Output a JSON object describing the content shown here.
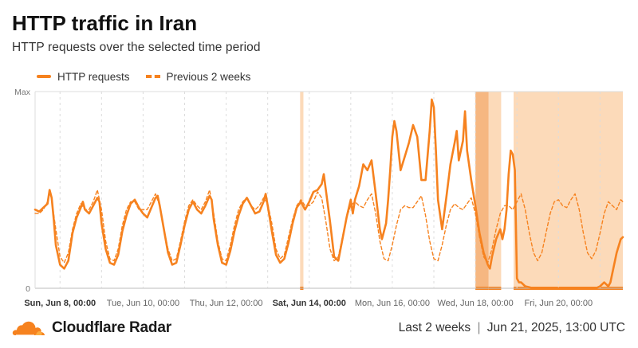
{
  "header": {
    "title": "HTTP traffic in Iran",
    "subtitle": "HTTP requests over the selected time period"
  },
  "legend": {
    "current": "HTTP requests",
    "previous": "Previous 2 weeks"
  },
  "footer": {
    "brand": "Cloudflare Radar",
    "range": "Last 2 weeks",
    "separator": "|",
    "timestamp": "Jun 21, 2025, 13:00 UTC"
  },
  "colors": {
    "accent": "#f6821f",
    "shade": "#fbd3ad",
    "grid": "#dcdcdc"
  },
  "chart_data": {
    "type": "line",
    "x_unit": "day index from Sun, Jun 8, 00:00 UTC",
    "ylabel_ticks": [
      "Max",
      "0"
    ],
    "ylim": [
      0,
      100
    ],
    "xlim": [
      -0.6,
      13.55
    ],
    "x_ticks": [
      {
        "x": 0,
        "label": "Sun, Jun 8, 00:00",
        "bold": true
      },
      {
        "x": 2,
        "label": "Tue, Jun 10, 00:00",
        "bold": false
      },
      {
        "x": 4,
        "label": "Thu, Jun 12, 00:00",
        "bold": false
      },
      {
        "x": 6,
        "label": "Sat, Jun 14, 00:00",
        "bold": true
      },
      {
        "x": 8,
        "label": "Mon, Jun 16, 00:00",
        "bold": false
      },
      {
        "x": 10,
        "label": "Wed, Jun 18, 00:00",
        "bold": false
      },
      {
        "x": 12,
        "label": "Fri, Jun 20, 00:00",
        "bold": false
      }
    ],
    "highlights": [
      {
        "x0": 5.78,
        "x1": 5.86,
        "strength": "light"
      },
      {
        "x0": 10.0,
        "x1": 10.32,
        "strength": "dark"
      },
      {
        "x0": 10.32,
        "x1": 10.62,
        "strength": "light"
      },
      {
        "x0": 10.92,
        "x1": 13.55,
        "strength": "light"
      }
    ],
    "series": [
      {
        "name": "HTTP requests",
        "style": "solid",
        "points": [
          [
            -0.6,
            40
          ],
          [
            -0.5,
            39
          ],
          [
            -0.4,
            41
          ],
          [
            -0.3,
            43
          ],
          [
            -0.25,
            50
          ],
          [
            -0.2,
            46
          ],
          [
            -0.15,
            35
          ],
          [
            -0.1,
            22
          ],
          [
            0.0,
            12
          ],
          [
            0.1,
            10
          ],
          [
            0.2,
            14
          ],
          [
            0.3,
            28
          ],
          [
            0.4,
            36
          ],
          [
            0.5,
            41
          ],
          [
            0.55,
            44
          ],
          [
            0.6,
            40
          ],
          [
            0.7,
            38
          ],
          [
            0.8,
            42
          ],
          [
            0.9,
            46
          ],
          [
            0.95,
            44
          ],
          [
            1.0,
            33
          ],
          [
            1.1,
            20
          ],
          [
            1.2,
            13
          ],
          [
            1.3,
            12
          ],
          [
            1.4,
            17
          ],
          [
            1.5,
            29
          ],
          [
            1.6,
            37
          ],
          [
            1.7,
            43
          ],
          [
            1.8,
            45
          ],
          [
            1.9,
            41
          ],
          [
            2.0,
            38
          ],
          [
            2.1,
            36
          ],
          [
            2.2,
            41
          ],
          [
            2.3,
            46
          ],
          [
            2.35,
            47
          ],
          [
            2.4,
            42
          ],
          [
            2.5,
            30
          ],
          [
            2.6,
            18
          ],
          [
            2.7,
            12
          ],
          [
            2.8,
            13
          ],
          [
            2.9,
            22
          ],
          [
            3.0,
            32
          ],
          [
            3.1,
            40
          ],
          [
            3.2,
            44
          ],
          [
            3.3,
            40
          ],
          [
            3.4,
            38
          ],
          [
            3.5,
            42
          ],
          [
            3.6,
            47
          ],
          [
            3.65,
            45
          ],
          [
            3.7,
            35
          ],
          [
            3.8,
            22
          ],
          [
            3.9,
            13
          ],
          [
            4.0,
            12
          ],
          [
            4.1,
            19
          ],
          [
            4.2,
            29
          ],
          [
            4.3,
            37
          ],
          [
            4.4,
            43
          ],
          [
            4.5,
            46
          ],
          [
            4.6,
            42
          ],
          [
            4.7,
            38
          ],
          [
            4.8,
            39
          ],
          [
            4.9,
            44
          ],
          [
            4.95,
            48
          ],
          [
            5.0,
            42
          ],
          [
            5.1,
            29
          ],
          [
            5.2,
            17
          ],
          [
            5.3,
            13
          ],
          [
            5.4,
            15
          ],
          [
            5.5,
            23
          ],
          [
            5.6,
            33
          ],
          [
            5.7,
            41
          ],
          [
            5.8,
            44
          ],
          [
            5.85,
            42
          ],
          [
            5.9,
            40
          ],
          [
            6.0,
            44
          ],
          [
            6.1,
            49
          ],
          [
            6.2,
            50
          ],
          [
            6.3,
            53
          ],
          [
            6.35,
            58
          ],
          [
            6.4,
            50
          ],
          [
            6.5,
            34
          ],
          [
            6.6,
            16
          ],
          [
            6.7,
            14
          ],
          [
            6.8,
            25
          ],
          [
            6.9,
            36
          ],
          [
            7.0,
            45
          ],
          [
            7.05,
            38
          ],
          [
            7.1,
            45
          ],
          [
            7.2,
            52
          ],
          [
            7.3,
            63
          ],
          [
            7.4,
            60
          ],
          [
            7.5,
            65
          ],
          [
            7.6,
            48
          ],
          [
            7.7,
            30
          ],
          [
            7.75,
            25
          ],
          [
            7.85,
            33
          ],
          [
            7.9,
            45
          ],
          [
            7.95,
            60
          ],
          [
            8.0,
            77
          ],
          [
            8.05,
            85
          ],
          [
            8.1,
            80
          ],
          [
            8.2,
            60
          ],
          [
            8.3,
            67
          ],
          [
            8.4,
            74
          ],
          [
            8.5,
            83
          ],
          [
            8.6,
            77
          ],
          [
            8.7,
            55
          ],
          [
            8.8,
            55
          ],
          [
            8.9,
            80
          ],
          [
            8.95,
            96
          ],
          [
            9.0,
            92
          ],
          [
            9.05,
            70
          ],
          [
            9.1,
            45
          ],
          [
            9.2,
            30
          ],
          [
            9.3,
            46
          ],
          [
            9.4,
            63
          ],
          [
            9.5,
            74
          ],
          [
            9.55,
            80
          ],
          [
            9.6,
            65
          ],
          [
            9.7,
            75
          ],
          [
            9.75,
            90
          ],
          [
            9.8,
            70
          ],
          [
            9.9,
            55
          ],
          [
            10.0,
            42
          ],
          [
            10.1,
            28
          ],
          [
            10.2,
            18
          ],
          [
            10.3,
            12
          ],
          [
            10.35,
            10
          ],
          [
            10.4,
            16
          ],
          [
            10.5,
            25
          ],
          [
            10.6,
            30
          ],
          [
            10.65,
            25
          ],
          [
            10.7,
            30
          ],
          [
            10.75,
            40
          ],
          [
            10.8,
            58
          ],
          [
            10.85,
            70
          ],
          [
            10.9,
            68
          ],
          [
            10.95,
            60
          ],
          [
            11.0,
            5
          ],
          [
            11.05,
            3
          ],
          [
            11.1,
            3
          ],
          [
            11.2,
            1
          ],
          [
            11.4,
            0
          ],
          [
            11.8,
            0
          ],
          [
            12.3,
            0
          ],
          [
            12.7,
            0
          ],
          [
            12.9,
            0
          ],
          [
            13.0,
            1
          ],
          [
            13.1,
            3
          ],
          [
            13.15,
            2
          ],
          [
            13.2,
            1
          ],
          [
            13.25,
            3
          ],
          [
            13.3,
            8
          ],
          [
            13.35,
            13
          ],
          [
            13.4,
            18
          ],
          [
            13.5,
            25
          ],
          [
            13.55,
            26
          ]
        ]
      },
      {
        "name": "Previous 2 weeks",
        "style": "dashed",
        "points": [
          [
            -0.6,
            38
          ],
          [
            -0.5,
            38
          ],
          [
            -0.4,
            40
          ],
          [
            -0.3,
            44
          ],
          [
            -0.25,
            50
          ],
          [
            -0.2,
            45
          ],
          [
            -0.1,
            30
          ],
          [
            0.0,
            16
          ],
          [
            0.1,
            13
          ],
          [
            0.2,
            18
          ],
          [
            0.3,
            30
          ],
          [
            0.4,
            38
          ],
          [
            0.5,
            43
          ],
          [
            0.6,
            40
          ],
          [
            0.7,
            40
          ],
          [
            0.8,
            44
          ],
          [
            0.9,
            50
          ],
          [
            1.0,
            40
          ],
          [
            1.1,
            24
          ],
          [
            1.2,
            15
          ],
          [
            1.3,
            14
          ],
          [
            1.4,
            20
          ],
          [
            1.5,
            32
          ],
          [
            1.6,
            40
          ],
          [
            1.7,
            44
          ],
          [
            1.8,
            44
          ],
          [
            1.9,
            40
          ],
          [
            2.0,
            40
          ],
          [
            2.1,
            40
          ],
          [
            2.2,
            44
          ],
          [
            2.3,
            48
          ],
          [
            2.4,
            42
          ],
          [
            2.5,
            30
          ],
          [
            2.6,
            20
          ],
          [
            2.7,
            14
          ],
          [
            2.8,
            15
          ],
          [
            2.9,
            24
          ],
          [
            3.0,
            34
          ],
          [
            3.1,
            42
          ],
          [
            3.2,
            45
          ],
          [
            3.3,
            42
          ],
          [
            3.4,
            40
          ],
          [
            3.5,
            44
          ],
          [
            3.6,
            50
          ],
          [
            3.7,
            38
          ],
          [
            3.8,
            24
          ],
          [
            3.9,
            15
          ],
          [
            4.0,
            14
          ],
          [
            4.1,
            22
          ],
          [
            4.2,
            32
          ],
          [
            4.3,
            40
          ],
          [
            4.4,
            44
          ],
          [
            4.5,
            46
          ],
          [
            4.6,
            42
          ],
          [
            4.7,
            40
          ],
          [
            4.8,
            42
          ],
          [
            4.9,
            46
          ],
          [
            5.0,
            43
          ],
          [
            5.1,
            33
          ],
          [
            5.2,
            20
          ],
          [
            5.3,
            15
          ],
          [
            5.4,
            17
          ],
          [
            5.5,
            26
          ],
          [
            5.6,
            35
          ],
          [
            5.7,
            42
          ],
          [
            5.8,
            45
          ],
          [
            5.9,
            42
          ],
          [
            6.0,
            42
          ],
          [
            6.1,
            44
          ],
          [
            6.2,
            49
          ],
          [
            6.3,
            46
          ],
          [
            6.4,
            34
          ],
          [
            6.5,
            20
          ],
          [
            6.6,
            14
          ],
          [
            6.7,
            16
          ],
          [
            6.8,
            26
          ],
          [
            6.9,
            36
          ],
          [
            7.0,
            42
          ],
          [
            7.1,
            44
          ],
          [
            7.2,
            42
          ],
          [
            7.3,
            41
          ],
          [
            7.4,
            45
          ],
          [
            7.5,
            48
          ],
          [
            7.6,
            38
          ],
          [
            7.7,
            24
          ],
          [
            7.8,
            15
          ],
          [
            7.9,
            14
          ],
          [
            8.0,
            22
          ],
          [
            8.1,
            32
          ],
          [
            8.2,
            40
          ],
          [
            8.3,
            42
          ],
          [
            8.4,
            41
          ],
          [
            8.5,
            41
          ],
          [
            8.6,
            44
          ],
          [
            8.7,
            47
          ],
          [
            8.8,
            37
          ],
          [
            8.9,
            24
          ],
          [
            9.0,
            15
          ],
          [
            9.1,
            14
          ],
          [
            9.2,
            22
          ],
          [
            9.3,
            32
          ],
          [
            9.4,
            40
          ],
          [
            9.5,
            43
          ],
          [
            9.6,
            41
          ],
          [
            9.7,
            40
          ],
          [
            9.8,
            43
          ],
          [
            9.9,
            46
          ],
          [
            10.0,
            38
          ],
          [
            10.1,
            26
          ],
          [
            10.2,
            16
          ],
          [
            10.3,
            13
          ],
          [
            10.4,
            20
          ],
          [
            10.5,
            30
          ],
          [
            10.6,
            38
          ],
          [
            10.7,
            42
          ],
          [
            10.8,
            42
          ],
          [
            10.9,
            40
          ],
          [
            11.0,
            44
          ],
          [
            11.1,
            48
          ],
          [
            11.2,
            40
          ],
          [
            11.3,
            28
          ],
          [
            11.4,
            18
          ],
          [
            11.5,
            14
          ],
          [
            11.6,
            18
          ],
          [
            11.7,
            28
          ],
          [
            11.8,
            38
          ],
          [
            11.9,
            44
          ],
          [
            12.0,
            45
          ],
          [
            12.1,
            42
          ],
          [
            12.2,
            41
          ],
          [
            12.3,
            45
          ],
          [
            12.4,
            48
          ],
          [
            12.5,
            40
          ],
          [
            12.6,
            28
          ],
          [
            12.7,
            18
          ],
          [
            12.8,
            15
          ],
          [
            12.9,
            19
          ],
          [
            13.0,
            28
          ],
          [
            13.1,
            38
          ],
          [
            13.2,
            44
          ],
          [
            13.3,
            42
          ],
          [
            13.4,
            40
          ],
          [
            13.5,
            45
          ],
          [
            13.55,
            44
          ]
        ]
      }
    ]
  }
}
